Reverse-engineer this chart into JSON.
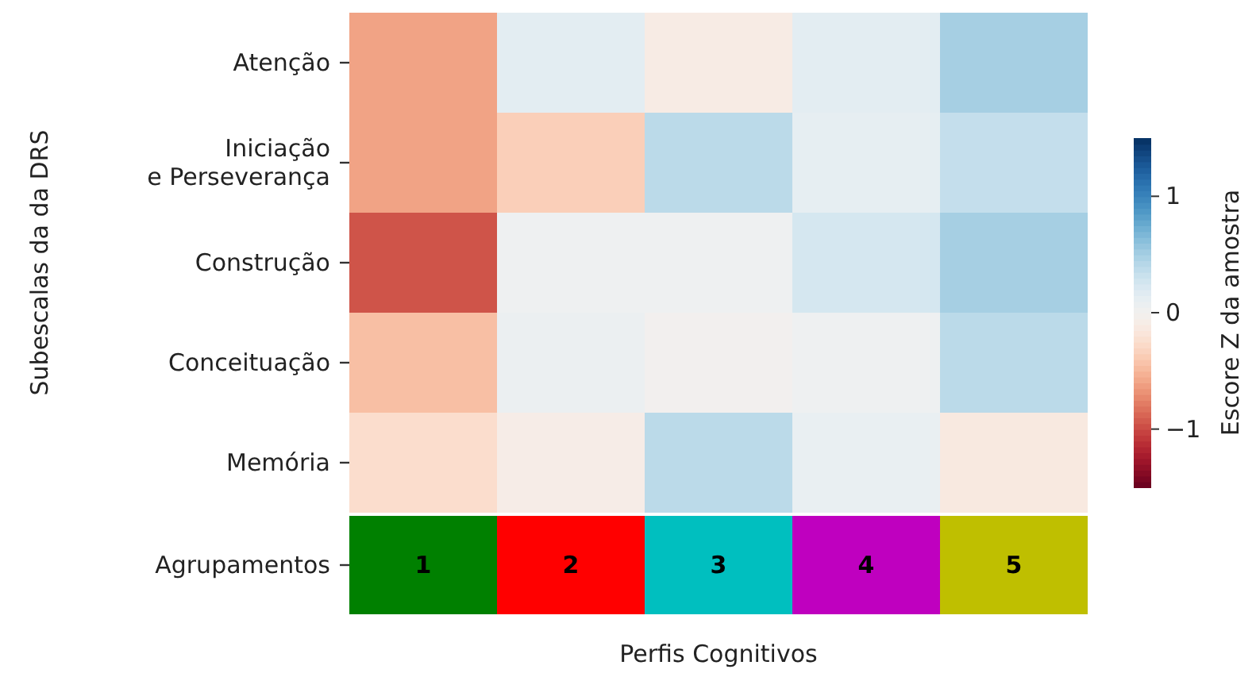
{
  "chart_data": [
    {
      "type": "heatmap",
      "ylabel": "Subescalas da da DRS",
      "clabel": "Escore Z da amostra",
      "categories": [
        null,
        null,
        null,
        null,
        null
      ],
      "y_categories": [
        "Atenção",
        "Iniciação\ne Perseverança",
        "Construção",
        "Conceituação",
        "Memória"
      ],
      "cells": [
        [
          -0.6,
          0.15,
          -0.1,
          0.15,
          0.5
        ],
        [
          -0.6,
          -0.35,
          0.4,
          0.12,
          0.35
        ],
        [
          -0.95,
          0.05,
          0.05,
          0.25,
          0.5
        ],
        [
          -0.45,
          0.08,
          0,
          0.05,
          0.4
        ],
        [
          -0.25,
          -0.08,
          0.4,
          0.1,
          -0.13
        ]
      ],
      "clim": [
        -1.5,
        1.5
      ],
      "cticks": [
        {
          "value": -1,
          "label": "−1"
        },
        0,
        1
      ]
    },
    {
      "type": "heatmap",
      "xlabel": "Perfis Cognitivos",
      "categories": [
        null,
        null,
        null,
        null,
        null
      ],
      "y_categories": [
        "Agrupamentos"
      ],
      "cells": [
        [
          1,
          2,
          3,
          4,
          5
        ]
      ],
      "colors": [
        "#008000",
        "#ff0000",
        "#00bfbf",
        "#bf00bf",
        "#bfbf00"
      ],
      "data_labels": true
    }
  ]
}
